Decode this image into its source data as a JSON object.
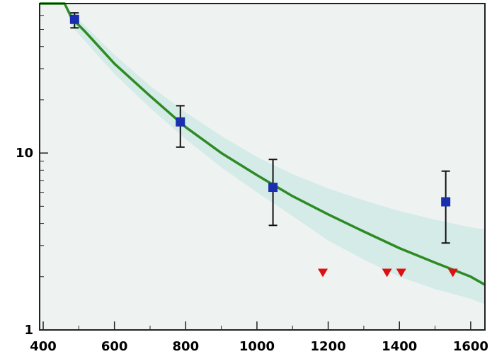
{
  "chart_data": {
    "type": "scatter",
    "title": "",
    "xlabel": "",
    "ylabel": "",
    "xlim": [
      390,
      1640
    ],
    "ylim": [
      1,
      70
    ],
    "log_y": true,
    "grid": false,
    "x_ticks": [
      400,
      600,
      800,
      1000,
      1200,
      1400,
      1600
    ],
    "x_tick_labels": [
      "400",
      "600",
      "800",
      "1000",
      "1200",
      "1400",
      "1600"
    ],
    "y_ticks": [
      1,
      10
    ],
    "y_tick_labels": [
      "1",
      "10"
    ],
    "band": {
      "color": "#cfe9e6",
      "x": [
        390,
        460,
        480,
        600,
        700,
        800,
        900,
        1000,
        1100,
        1200,
        1300,
        1400,
        1500,
        1600,
        1640
      ],
      "upper": [
        70,
        70,
        62,
        36,
        24,
        17,
        12.5,
        9.5,
        7.6,
        6.3,
        5.4,
        4.7,
        4.2,
        3.8,
        3.7
      ],
      "lower": [
        70,
        70,
        52,
        28,
        18,
        12,
        8.3,
        6.0,
        4.4,
        3.2,
        2.5,
        2.0,
        1.7,
        1.5,
        1.4
      ]
    },
    "curve": {
      "color": "#2e8b23",
      "x": [
        390,
        460,
        480,
        520,
        600,
        700,
        800,
        900,
        1000,
        1100,
        1200,
        1300,
        1400,
        1500,
        1600,
        1640
      ],
      "y": [
        70,
        70,
        58,
        48,
        32,
        21,
        14,
        10,
        7.5,
        5.7,
        4.5,
        3.6,
        2.9,
        2.4,
        2.0,
        1.8
      ]
    },
    "points": {
      "color": "#1a2fb0",
      "x": [
        488,
        785,
        1045,
        1530
      ],
      "y": [
        57,
        15,
        6.4,
        5.3
      ],
      "err_low": [
        51,
        10.8,
        3.9,
        3.1
      ],
      "err_high": [
        62,
        18.5,
        9.2,
        7.9
      ]
    },
    "limits": {
      "color": "#dd1111",
      "x": [
        1185,
        1365,
        1405,
        1550
      ],
      "y": [
        2.1,
        2.1,
        2.1,
        2.1
      ]
    }
  }
}
